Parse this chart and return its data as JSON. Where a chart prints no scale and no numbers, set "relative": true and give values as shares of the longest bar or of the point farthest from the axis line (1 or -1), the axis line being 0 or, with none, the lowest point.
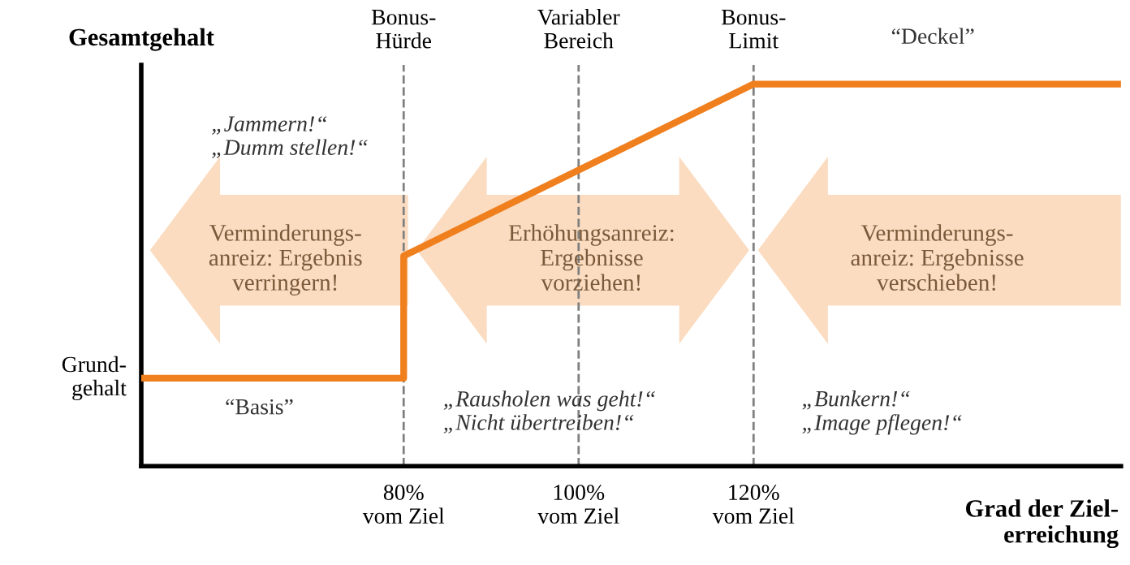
{
  "chart_data": {
    "type": "line",
    "relative": true,
    "x": [
      50,
      80,
      80,
      120,
      162
    ],
    "series": [
      {
        "color": "#f07f1e",
        "values": [
          0.23,
          0.23,
          0.55,
          1,
          1
        ]
      }
    ],
    "xlim": [
      50,
      162
    ],
    "xticks": [
      {
        "value": 80,
        "label": "80%\nvom Ziel"
      },
      {
        "value": 100,
        "label": "100%\nvom Ziel"
      },
      {
        "value": 120,
        "label": "120%\nvom Ziel"
      }
    ],
    "ylabel": "Gesamtgehalt",
    "xlabel": "Grad der Ziel-\nerreichung",
    "ref_lines": [
      {
        "axis": "x",
        "value": 80,
        "label": "Bonus-\nHürde",
        "color": "#808080",
        "line_style": "dashed"
      },
      {
        "axis": "x",
        "value": 100,
        "label": "Variabler\nBereich",
        "color": "#808080",
        "line_style": "dashed"
      },
      {
        "axis": "x",
        "value": 120,
        "label": "Bonus-\nLimit",
        "color": "#808080",
        "line_style": "dashed"
      }
    ],
    "annotations": [
      "Verminderungs-\nanreiz: Ergebnis\nverringern!",
      "Erhöhungsanreiz:\nErgebnisse\nvorziehen!",
      "Verminderungs-\nanreiz: Ergebnisse\nverschieben!",
      "„Jammern!“\n„Dumm stellen!“",
      "„Rausholen was geht!“\n„Nicht übertreiben!“",
      "„Bunkern!“\n„Image pflegen!“",
      "“Basis”",
      "“Deckel”",
      "Grund-\ngehalt"
    ]
  }
}
